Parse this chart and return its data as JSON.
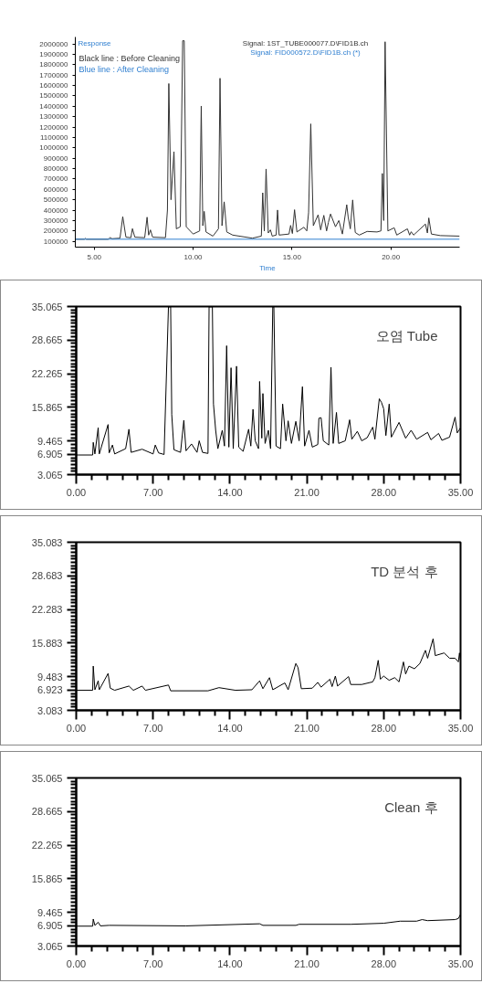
{
  "chart_data": [
    {
      "type": "line",
      "xlabel": "Time",
      "ylabel": "Response",
      "legend": "top left",
      "grid": false,
      "line_style": "solid",
      "annotations": [
        "Signal: 1ST_TUBE000077.D\\FID1B.ch",
        "Signal: FID000572.D\\FID1B.ch (*)"
      ],
      "xlim": [
        4.04,
        23.48
      ],
      "ylim": [
        44000,
        2066000
      ],
      "xticks": [
        {
          "value": 5,
          "label": "5.00"
        },
        {
          "value": 10,
          "label": "10.00"
        },
        {
          "value": 15,
          "label": "15.00"
        },
        {
          "value": 20,
          "label": "20.00"
        }
      ],
      "yticks": [
        100000,
        200000,
        300000,
        400000,
        500000,
        600000,
        700000,
        800000,
        900000,
        1000000,
        1100000,
        1200000,
        1300000,
        1400000,
        1500000,
        1600000,
        1700000,
        1800000,
        1900000,
        2000000
      ],
      "series": [
        {
          "name": "Black line : Before Cleaning",
          "color": "#333333",
          "x": [
            4.04,
            4.5,
            4.55,
            4.6,
            5.7,
            5.8,
            5.9,
            6.3,
            6.44,
            6.6,
            6.85,
            6.93,
            7.05,
            7.55,
            7.67,
            7.75,
            7.84,
            7.95,
            8.6,
            8.7,
            8.77,
            8.88,
            9.03,
            9.15,
            9.35,
            9.47,
            9.55,
            9.65,
            10.0,
            10.33,
            10.41,
            10.49,
            10.56,
            10.65,
            11.0,
            11.28,
            11.36,
            11.46,
            11.57,
            11.7,
            12.0,
            13.0,
            13.45,
            13.52,
            13.6,
            13.69,
            13.8,
            13.91,
            14.0,
            14.2,
            14.27,
            14.35,
            14.85,
            14.93,
            15.02,
            15.13,
            15.25,
            15.6,
            15.75,
            15.84,
            15.95,
            16.08,
            16.32,
            16.45,
            16.61,
            16.75,
            16.84,
            16.95,
            17.2,
            17.37,
            17.55,
            17.77,
            17.84,
            17.95,
            18.07,
            18.2,
            18.4,
            18.8,
            19.3,
            19.5,
            19.57,
            19.64,
            19.71,
            19.85,
            20.17,
            20.3,
            20.84,
            20.95,
            21.03,
            21.15,
            21.75,
            21.85,
            21.92,
            22.05,
            22.5,
            23.48
          ],
          "values": [
            120000,
            120000,
            128000,
            120000,
            120000,
            135000,
            125000,
            130000,
            337000,
            140000,
            135000,
            222000,
            140000,
            135000,
            332000,
            160000,
            210000,
            140000,
            135000,
            400000,
            1618000,
            500000,
            962000,
            220000,
            240000,
            2030000,
            2030000,
            240000,
            170000,
            200000,
            1401000,
            250000,
            388000,
            190000,
            150000,
            220000,
            1669000,
            250000,
            480000,
            190000,
            160000,
            130000,
            150000,
            567000,
            200000,
            796000,
            180000,
            210000,
            150000,
            160000,
            401000,
            160000,
            170000,
            253000,
            175000,
            404000,
            190000,
            235000,
            200000,
            375000,
            1230000,
            250000,
            355000,
            210000,
            350000,
            200000,
            281000,
            363000,
            240000,
            300000,
            170000,
            452000,
            337000,
            220000,
            498000,
            185000,
            160000,
            195000,
            190000,
            200000,
            753000,
            300000,
            2020000,
            200000,
            230000,
            160000,
            220000,
            160000,
            192000,
            160000,
            266000,
            180000,
            325000,
            170000,
            155000,
            150000
          ]
        },
        {
          "name": "Blue line : After Cleaning",
          "color": "#2f7fd0",
          "x": [
            4.04,
            23.48
          ],
          "values": [
            120000,
            120000
          ]
        }
      ]
    },
    {
      "type": "line",
      "title": "오염 Tube",
      "grid": false,
      "line_style": "solid",
      "xlim": [
        0,
        35
      ],
      "ylim": [
        3.065,
        35.065
      ],
      "xticks": [
        {
          "value": 0,
          "label": "0.00"
        },
        {
          "value": 1.4,
          "label": null
        },
        {
          "value": 2.8,
          "label": null
        },
        {
          "value": 4.2,
          "label": null
        },
        {
          "value": 5.6,
          "label": null
        },
        {
          "value": 7,
          "label": "7.00"
        },
        {
          "value": 8.4,
          "label": null
        },
        {
          "value": 9.8,
          "label": null
        },
        {
          "value": 11.2,
          "label": null
        },
        {
          "value": 12.6,
          "label": null
        },
        {
          "value": 14,
          "label": "14.00"
        },
        {
          "value": 15.4,
          "label": null
        },
        {
          "value": 16.8,
          "label": null
        },
        {
          "value": 18.2,
          "label": null
        },
        {
          "value": 19.6,
          "label": null
        },
        {
          "value": 21,
          "label": "21.00"
        },
        {
          "value": 22.4,
          "label": null
        },
        {
          "value": 23.8,
          "label": null
        },
        {
          "value": 25.2,
          "label": null
        },
        {
          "value": 26.6,
          "label": null
        },
        {
          "value": 28,
          "label": "28.00"
        },
        {
          "value": 29.4,
          "label": null
        },
        {
          "value": 30.8,
          "label": null
        },
        {
          "value": 32.2,
          "label": null
        },
        {
          "value": 33.6,
          "label": null
        },
        {
          "value": 35,
          "label": "35.00"
        }
      ],
      "yticks": [
        3.065,
        {
          "value": 3.705,
          "label": null
        },
        {
          "value": 4.345,
          "label": null
        },
        {
          "value": 4.985,
          "label": null
        },
        {
          "value": 5.625,
          "label": null
        },
        {
          "value": 6.265,
          "label": null
        },
        6.905,
        {
          "value": 7.545,
          "label": null
        },
        {
          "value": 8.185,
          "label": null
        },
        {
          "value": 8.825,
          "label": null
        },
        9.465,
        {
          "value": 10.105,
          "label": null
        },
        {
          "value": 10.745,
          "label": null
        },
        {
          "value": 11.385,
          "label": null
        },
        {
          "value": 12.025,
          "label": null
        },
        {
          "value": 12.665,
          "label": null
        },
        {
          "value": 13.305,
          "label": null
        },
        {
          "value": 13.945,
          "label": null
        },
        {
          "value": 14.585,
          "label": null
        },
        {
          "value": 15.225,
          "label": null
        },
        15.865,
        {
          "value": 16.505,
          "label": null
        },
        {
          "value": 17.145,
          "label": null
        },
        {
          "value": 17.785,
          "label": null
        },
        {
          "value": 18.425,
          "label": null
        },
        {
          "value": 19.065,
          "label": null
        },
        {
          "value": 19.705,
          "label": null
        },
        {
          "value": 20.345,
          "label": null
        },
        {
          "value": 20.985,
          "label": null
        },
        {
          "value": 21.625,
          "label": null
        },
        22.265,
        {
          "value": 22.905,
          "label": null
        },
        {
          "value": 23.545,
          "label": null
        },
        {
          "value": 24.185,
          "label": null
        },
        {
          "value": 24.825,
          "label": null
        },
        {
          "value": 25.465,
          "label": null
        },
        {
          "value": 26.105,
          "label": null
        },
        {
          "value": 26.745,
          "label": null
        },
        {
          "value": 27.385,
          "label": null
        },
        {
          "value": 28.025,
          "label": null
        },
        28.665,
        {
          "value": 29.305,
          "label": null
        },
        {
          "value": 29.945,
          "label": null
        },
        {
          "value": 30.585,
          "label": null
        },
        {
          "value": 31.225,
          "label": null
        },
        {
          "value": 31.865,
          "label": null
        },
        {
          "value": 32.505,
          "label": null
        },
        {
          "value": 33.145,
          "label": null
        },
        {
          "value": 33.785,
          "label": null
        },
        {
          "value": 34.425,
          "label": null
        },
        35.065
      ],
      "series": [
        {
          "color": "#000000",
          "x": [
            0,
            1.5,
            1.55,
            1.7,
            2.0,
            2.1,
            2.9,
            3.0,
            3.3,
            3.5,
            4.5,
            4.8,
            5.0,
            6.0,
            7.0,
            7.2,
            7.5,
            8.0,
            8.4,
            8.6,
            8.7,
            8.9,
            9.5,
            9.8,
            10.0,
            10.5,
            11.0,
            11.2,
            11.5,
            12.0,
            12.1,
            12.3,
            12.4,
            12.5,
            12.7,
            12.9,
            13.3,
            13.5,
            13.7,
            13.9,
            14.1,
            14.3,
            14.6,
            14.8,
            15.2,
            15.7,
            15.9,
            16.1,
            16.3,
            16.6,
            16.7,
            16.9,
            17.0,
            17.2,
            17.5,
            17.7,
            17.9,
            18.0,
            18.2,
            18.6,
            18.8,
            19.1,
            19.3,
            19.6,
            20.0,
            20.3,
            20.6,
            20.8,
            21.2,
            21.5,
            22.0,
            22.1,
            22.3,
            22.5,
            23.0,
            23.2,
            23.4,
            23.7,
            23.9,
            24.5,
            24.9,
            25.1,
            25.6,
            26.0,
            26.5,
            27.0,
            27.2,
            27.6,
            27.8,
            28.0,
            28.2,
            28.5,
            28.7,
            29.4,
            30.0,
            30.5,
            31.0,
            32.0,
            32.3,
            33.0,
            33.3,
            34.0,
            34.5,
            34.7,
            35.0
          ],
          "values": [
            6.8,
            6.8,
            9.2,
            7.0,
            12.0,
            7.0,
            12.6,
            7.2,
            8.7,
            7.0,
            8.0,
            11.7,
            7.3,
            7.9,
            7.0,
            8.7,
            7.2,
            6.9,
            35.0,
            35.0,
            14.5,
            7.8,
            7.3,
            13.4,
            7.6,
            8.9,
            7.3,
            9.5,
            7.3,
            7.1,
            35.0,
            35.0,
            35.0,
            16.5,
            11.5,
            8.0,
            11.5,
            8.5,
            27.6,
            8.3,
            23.4,
            8.0,
            23.7,
            8.3,
            7.5,
            11.7,
            8.5,
            15.5,
            9.5,
            8.0,
            20.8,
            10.0,
            18.5,
            9.0,
            11.5,
            8.0,
            35.0,
            35.0,
            8.5,
            8.0,
            16.5,
            9.5,
            13.3,
            9.0,
            13.2,
            9.5,
            19.8,
            8.5,
            11.5,
            8.3,
            8.8,
            13.8,
            13.9,
            9.5,
            8.7,
            23.5,
            9.0,
            14.9,
            9.0,
            9.5,
            13.5,
            9.8,
            11.3,
            9.5,
            10.1,
            12.1,
            9.8,
            17.5,
            16.8,
            15.6,
            10.5,
            16.5,
            10.2,
            13.0,
            10.0,
            11.5,
            9.8,
            11.1,
            9.7,
            10.9,
            9.6,
            10.2,
            14.0,
            11.0,
            12.0
          ]
        }
      ]
    },
    {
      "type": "line",
      "title": "TD 분석 후",
      "grid": false,
      "line_style": "solid",
      "xlim": [
        0,
        35
      ],
      "ylim": [
        3.083,
        35.083
      ],
      "xticks": [
        {
          "value": 0,
          "label": "0.00"
        },
        {
          "value": 1.4,
          "label": null
        },
        {
          "value": 2.8,
          "label": null
        },
        {
          "value": 4.2,
          "label": null
        },
        {
          "value": 5.6,
          "label": null
        },
        {
          "value": 7,
          "label": "7.00"
        },
        {
          "value": 8.4,
          "label": null
        },
        {
          "value": 9.8,
          "label": null
        },
        {
          "value": 11.2,
          "label": null
        },
        {
          "value": 12.6,
          "label": null
        },
        {
          "value": 14,
          "label": "14.00"
        },
        {
          "value": 15.4,
          "label": null
        },
        {
          "value": 16.8,
          "label": null
        },
        {
          "value": 18.2,
          "label": null
        },
        {
          "value": 19.6,
          "label": null
        },
        {
          "value": 21,
          "label": "21.00"
        },
        {
          "value": 22.4,
          "label": null
        },
        {
          "value": 23.8,
          "label": null
        },
        {
          "value": 25.2,
          "label": null
        },
        {
          "value": 26.6,
          "label": null
        },
        {
          "value": 28,
          "label": "28.00"
        },
        {
          "value": 29.4,
          "label": null
        },
        {
          "value": 30.8,
          "label": null
        },
        {
          "value": 32.2,
          "label": null
        },
        {
          "value": 33.6,
          "label": null
        },
        {
          "value": 35,
          "label": "35.00"
        }
      ],
      "yticks": [
        3.083,
        {
          "value": 3.723,
          "label": null
        },
        {
          "value": 4.363,
          "label": null
        },
        {
          "value": 5.003,
          "label": null
        },
        {
          "value": 5.643,
          "label": null
        },
        {
          "value": 6.283,
          "label": null
        },
        6.923,
        {
          "value": 7.563,
          "label": null
        },
        {
          "value": 8.203,
          "label": null
        },
        {
          "value": 8.843,
          "label": null
        },
        9.483,
        {
          "value": 10.123,
          "label": null
        },
        {
          "value": 10.763,
          "label": null
        },
        {
          "value": 11.403,
          "label": null
        },
        {
          "value": 12.043,
          "label": null
        },
        {
          "value": 12.683,
          "label": null
        },
        {
          "value": 13.323,
          "label": null
        },
        {
          "value": 13.963,
          "label": null
        },
        {
          "value": 14.603,
          "label": null
        },
        {
          "value": 15.243,
          "label": null
        },
        15.883,
        {
          "value": 16.523,
          "label": null
        },
        {
          "value": 17.163,
          "label": null
        },
        {
          "value": 17.803,
          "label": null
        },
        {
          "value": 18.443,
          "label": null
        },
        {
          "value": 19.083,
          "label": null
        },
        {
          "value": 19.723,
          "label": null
        },
        {
          "value": 20.363,
          "label": null
        },
        {
          "value": 21.003,
          "label": null
        },
        {
          "value": 21.643,
          "label": null
        },
        22.283,
        {
          "value": 22.923,
          "label": null
        },
        {
          "value": 23.563,
          "label": null
        },
        {
          "value": 24.203,
          "label": null
        },
        {
          "value": 24.843,
          "label": null
        },
        {
          "value": 25.483,
          "label": null
        },
        {
          "value": 26.123,
          "label": null
        },
        {
          "value": 26.763,
          "label": null
        },
        {
          "value": 27.403,
          "label": null
        },
        {
          "value": 28.043,
          "label": null
        },
        28.683,
        {
          "value": 29.323,
          "label": null
        },
        {
          "value": 29.963,
          "label": null
        },
        {
          "value": 30.603,
          "label": null
        },
        {
          "value": 31.243,
          "label": null
        },
        {
          "value": 31.883,
          "label": null
        },
        {
          "value": 32.523,
          "label": null
        },
        {
          "value": 33.163,
          "label": null
        },
        {
          "value": 33.803,
          "label": null
        },
        {
          "value": 34.443,
          "label": null
        },
        35.083
      ],
      "series": [
        {
          "color": "#000000",
          "x": [
            0,
            1.5,
            1.55,
            1.7,
            2.0,
            2.1,
            2.9,
            3.1,
            3.5,
            4.8,
            5.2,
            6.0,
            6.3,
            8.4,
            8.6,
            12.0,
            13.0,
            14.5,
            16.0,
            16.7,
            17.0,
            17.6,
            17.9,
            19.0,
            19.3,
            20.0,
            20.2,
            20.5,
            21.5,
            22.0,
            22.3,
            23.1,
            23.3,
            23.6,
            23.8,
            24.8,
            25.0,
            26.0,
            27.0,
            27.2,
            27.5,
            27.7,
            28.0,
            28.5,
            29.0,
            29.4,
            29.8,
            30.0,
            30.3,
            30.8,
            31.3,
            31.8,
            32.0,
            32.5,
            32.7,
            33.5,
            34.0,
            34.5,
            34.8,
            34.9,
            35.0
          ],
          "values": [
            6.9,
            6.9,
            11.5,
            7.0,
            8.7,
            7.0,
            10.1,
            7.3,
            6.9,
            7.7,
            6.9,
            7.7,
            6.9,
            7.9,
            6.8,
            6.8,
            7.4,
            6.9,
            7.0,
            8.7,
            7.2,
            9.3,
            7.0,
            8.3,
            7.0,
            12.0,
            11.2,
            7.2,
            7.3,
            8.4,
            7.5,
            9.0,
            7.6,
            9.6,
            7.7,
            9.5,
            8.0,
            8.0,
            8.5,
            9.3,
            12.6,
            9.0,
            9.6,
            8.8,
            9.3,
            8.5,
            12.3,
            10.0,
            11.5,
            11.0,
            12.0,
            14.5,
            13.0,
            16.7,
            13.5,
            14.0,
            13.0,
            13.0,
            12.3,
            14.0,
            12.5
          ]
        }
      ]
    },
    {
      "type": "line",
      "title": "Clean 후",
      "grid": false,
      "line_style": "solid",
      "xlim": [
        0,
        35
      ],
      "ylim": [
        3.065,
        35.065
      ],
      "xticks": [
        {
          "value": 0,
          "label": "0.00"
        },
        {
          "value": 1.4,
          "label": null
        },
        {
          "value": 2.8,
          "label": null
        },
        {
          "value": 4.2,
          "label": null
        },
        {
          "value": 5.6,
          "label": null
        },
        {
          "value": 7,
          "label": "7.00"
        },
        {
          "value": 8.4,
          "label": null
        },
        {
          "value": 9.8,
          "label": null
        },
        {
          "value": 11.2,
          "label": null
        },
        {
          "value": 12.6,
          "label": null
        },
        {
          "value": 14,
          "label": "14.00"
        },
        {
          "value": 15.4,
          "label": null
        },
        {
          "value": 16.8,
          "label": null
        },
        {
          "value": 18.2,
          "label": null
        },
        {
          "value": 19.6,
          "label": null
        },
        {
          "value": 21,
          "label": "21.00"
        },
        {
          "value": 22.4,
          "label": null
        },
        {
          "value": 23.8,
          "label": null
        },
        {
          "value": 25.2,
          "label": null
        },
        {
          "value": 26.6,
          "label": null
        },
        {
          "value": 28,
          "label": "28.00"
        },
        {
          "value": 29.4,
          "label": null
        },
        {
          "value": 30.8,
          "label": null
        },
        {
          "value": 32.2,
          "label": null
        },
        {
          "value": 33.6,
          "label": null
        },
        {
          "value": 35,
          "label": "35.00"
        }
      ],
      "yticks": [
        3.065,
        {
          "value": 3.705,
          "label": null
        },
        {
          "value": 4.345,
          "label": null
        },
        {
          "value": 4.985,
          "label": null
        },
        {
          "value": 5.625,
          "label": null
        },
        {
          "value": 6.265,
          "label": null
        },
        6.905,
        {
          "value": 7.545,
          "label": null
        },
        {
          "value": 8.185,
          "label": null
        },
        {
          "value": 8.825,
          "label": null
        },
        9.465,
        {
          "value": 10.105,
          "label": null
        },
        {
          "value": 10.745,
          "label": null
        },
        {
          "value": 11.385,
          "label": null
        },
        {
          "value": 12.025,
          "label": null
        },
        {
          "value": 12.665,
          "label": null
        },
        {
          "value": 13.305,
          "label": null
        },
        {
          "value": 13.945,
          "label": null
        },
        {
          "value": 14.585,
          "label": null
        },
        {
          "value": 15.225,
          "label": null
        },
        15.865,
        {
          "value": 16.505,
          "label": null
        },
        {
          "value": 17.145,
          "label": null
        },
        {
          "value": 17.785,
          "label": null
        },
        {
          "value": 18.425,
          "label": null
        },
        {
          "value": 19.065,
          "label": null
        },
        {
          "value": 19.705,
          "label": null
        },
        {
          "value": 20.345,
          "label": null
        },
        {
          "value": 20.985,
          "label": null
        },
        {
          "value": 21.625,
          "label": null
        },
        22.265,
        {
          "value": 22.905,
          "label": null
        },
        {
          "value": 23.545,
          "label": null
        },
        {
          "value": 24.185,
          "label": null
        },
        {
          "value": 24.825,
          "label": null
        },
        {
          "value": 25.465,
          "label": null
        },
        {
          "value": 26.105,
          "label": null
        },
        {
          "value": 26.745,
          "label": null
        },
        {
          "value": 27.385,
          "label": null
        },
        {
          "value": 28.025,
          "label": null
        },
        28.665,
        {
          "value": 29.305,
          "label": null
        },
        {
          "value": 29.945,
          "label": null
        },
        {
          "value": 30.585,
          "label": null
        },
        {
          "value": 31.225,
          "label": null
        },
        {
          "value": 31.865,
          "label": null
        },
        {
          "value": 32.505,
          "label": null
        },
        {
          "value": 33.145,
          "label": null
        },
        {
          "value": 33.785,
          "label": null
        },
        {
          "value": 34.425,
          "label": null
        },
        35.065
      ],
      "series": [
        {
          "color": "#000000",
          "x": [
            0,
            1.5,
            1.55,
            1.7,
            2.0,
            2.2,
            3.0,
            10.0,
            16.7,
            17.0,
            20.0,
            20.3,
            25.0,
            28.0,
            29.5,
            31.0,
            31.5,
            32.0,
            34.5,
            34.8,
            35.0
          ],
          "values": [
            6.85,
            6.85,
            8.2,
            7.0,
            7.6,
            6.9,
            7.0,
            6.9,
            7.3,
            7.0,
            7.0,
            7.2,
            7.2,
            7.4,
            7.8,
            7.8,
            8.1,
            7.9,
            8.1,
            8.3,
            9.1
          ]
        }
      ]
    }
  ]
}
